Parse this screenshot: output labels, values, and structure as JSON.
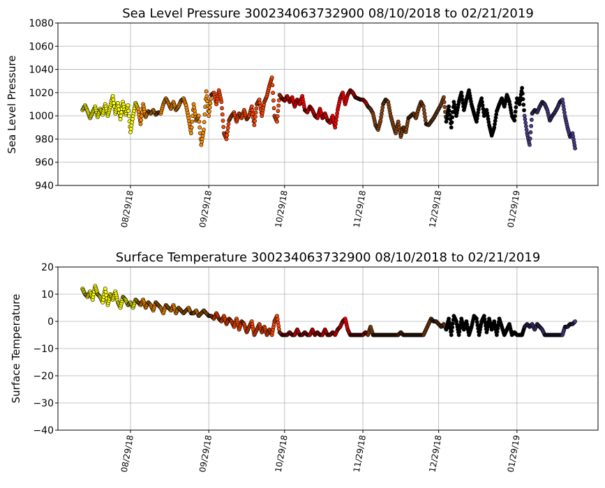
{
  "chart_data": [
    {
      "type": "scatter",
      "title": "Sea Level Pressure 300234063732900  08/10/2018 to 02/21/2019",
      "xlabel": "",
      "ylabel": "Sea Level Pressure",
      "ylim": [
        940,
        1080
      ],
      "yticks": [
        940,
        960,
        980,
        1000,
        1020,
        1040,
        1060,
        1080
      ],
      "grid": true,
      "x_start": "08/10/2018",
      "x_end": "02/21/2019",
      "x_unit": "days since 08/10/2018",
      "xticks": [
        {
          "label": "08/29/18",
          "day": 19
        },
        {
          "label": "09/29/18",
          "day": 50
        },
        {
          "label": "10/29/18",
          "day": 80
        },
        {
          "label": "11/29/18",
          "day": 111
        },
        {
          "label": "12/29/18",
          "day": 141
        },
        {
          "label": "01/29/19",
          "day": 172
        }
      ],
      "segments": [
        {
          "from": 0,
          "to": 21,
          "color": "#ffff00"
        },
        {
          "from": 22,
          "to": 50,
          "color": "#ff8c00"
        },
        {
          "from": 51,
          "to": 78,
          "color": "#ff4500"
        },
        {
          "from": 79,
          "to": 112,
          "color": "#ff0000"
        },
        {
          "from": 113,
          "to": 143,
          "color": "#8b4513"
        },
        {
          "from": 144,
          "to": 174,
          "color": "#000000"
        },
        {
          "from": 175,
          "to": 195,
          "color": "#483d8b"
        }
      ],
      "values": [
        1005,
        1009,
        1004,
        998,
        1003,
        1008,
        999,
        1006,
        1001,
        1010,
        1000,
        1008,
        1017,
        1002,
        1011,
        997,
        1012,
        1001,
        1009,
        986,
        1000,
        1011,
        1006,
        993,
        1010,
        999,
        1004,
        1002,
        1005,
        1001,
        1003,
        1002,
        1010,
        1015,
        1011,
        1006,
        1012,
        1005,
        1008,
        1013,
        1015,
        1009,
        998,
        985,
        1010,
        996,
        1000,
        975,
        988,
        1021,
        1000,
        1018,
        1020,
        1010,
        1022,
        1012,
        985,
        980,
        996,
        1000,
        1003,
        995,
        1002,
        998,
        1005,
        997,
        1000,
        1008,
        992,
        1010,
        1014,
        1000,
        1012,
        1017,
        1026,
        1033,
        1000,
        995,
        1018,
        1015,
        1013,
        1017,
        1012,
        1016,
        1008,
        1014,
        1010,
        1017,
        1005,
        1003,
        1008,
        1005,
        1000,
        998,
        1006,
        998,
        1002,
        996,
        994,
        1000,
        990,
        1005,
        1015,
        1020,
        1010,
        1018,
        1022,
        1020,
        1016,
        1015,
        1014,
        1014,
        1012,
        1008,
        1006,
        1002,
        992,
        988,
        996,
        1010,
        1014,
        1012,
        1000,
        992,
        985,
        995,
        982,
        990,
        986,
        998,
        1000,
        1002,
        998,
        1006,
        1012,
        1008,
        993,
        992,
        995,
        998,
        1002,
        1006,
        1010,
        1016,
        995,
        1008,
        990,
        1012,
        1000,
        1012,
        1020,
        1005,
        1014,
        1022,
        1010,
        1002,
        995,
        1008,
        1015,
        1000,
        1005,
        992,
        983,
        990,
        1004,
        1010,
        1015,
        1008,
        1018,
        1012,
        1000,
        996,
        1015,
        1010,
        1024,
        1000,
        985,
        975,
        1002,
        1005,
        1003,
        1008,
        1012,
        1010,
        1005,
        996,
        1000,
        1003,
        1007,
        1012,
        1014,
        1000,
        990,
        982,
        985,
        972
      ]
    },
    {
      "type": "scatter",
      "title": "Surface Temperature 300234063732900  08/10/2018 to 02/21/2019",
      "xlabel": "",
      "ylabel": "Surface Temperature",
      "ylim": [
        -40,
        20
      ],
      "yticks": [
        -40,
        -30,
        -20,
        -10,
        0,
        10,
        20
      ],
      "grid": true,
      "x_start": "08/10/2018",
      "x_end": "02/21/2019",
      "x_unit": "days since 08/10/2018",
      "xticks": [
        {
          "label": "08/29/18",
          "day": 19
        },
        {
          "label": "09/29/18",
          "day": 50
        },
        {
          "label": "10/29/18",
          "day": 80
        },
        {
          "label": "11/29/18",
          "day": 111
        },
        {
          "label": "12/29/18",
          "day": 141
        },
        {
          "label": "01/29/19",
          "day": 172
        }
      ],
      "segments": [
        {
          "from": 0,
          "to": 21,
          "color": "#ffff00"
        },
        {
          "from": 22,
          "to": 50,
          "color": "#ff8c00"
        },
        {
          "from": 51,
          "to": 78,
          "color": "#ff4500"
        },
        {
          "from": 79,
          "to": 112,
          "color": "#ff0000"
        },
        {
          "from": 113,
          "to": 143,
          "color": "#8b4513"
        },
        {
          "from": 144,
          "to": 174,
          "color": "#000000"
        },
        {
          "from": 175,
          "to": 195,
          "color": "#483d8b"
        }
      ],
      "values": [
        12,
        10,
        9,
        11,
        8,
        13,
        10,
        9,
        7,
        12,
        6,
        10,
        8,
        11,
        7,
        5,
        9,
        8,
        6,
        7,
        5,
        8,
        7,
        6,
        8,
        5,
        7,
        6,
        4,
        7,
        6,
        5,
        3,
        6,
        5,
        4,
        6,
        3,
        5,
        4,
        3,
        4,
        5,
        3,
        3,
        4,
        2,
        3,
        4,
        3,
        2,
        2,
        1,
        3,
        1,
        0,
        2,
        -1,
        1,
        0,
        -2,
        1,
        -3,
        0,
        -1,
        -4,
        -2,
        0,
        -5,
        -3,
        -1,
        -4,
        -2,
        -5,
        -3,
        -5,
        0,
        2,
        -4,
        -5,
        -5,
        -5,
        -4,
        -5,
        -5,
        -3,
        -5,
        -5,
        -4,
        -5,
        -5,
        -3,
        -5,
        -4,
        -5,
        -5,
        -3,
        -5,
        -5,
        -4,
        -5,
        -3,
        -2,
        0,
        1,
        -3,
        -5,
        -5,
        -5,
        -5,
        -5,
        -5,
        -4,
        -5,
        -2,
        -5,
        -5,
        -5,
        -5,
        -5,
        -5,
        -5,
        -5,
        -5,
        -5,
        -5,
        -4,
        -5,
        -5,
        -5,
        -5,
        -5,
        -5,
        -5,
        -5,
        -5,
        -3,
        -1,
        1,
        0,
        0,
        -1,
        -2,
        -1,
        -3,
        1,
        -5,
        2,
        0,
        -5,
        1,
        -3,
        0,
        -5,
        -2,
        2,
        1,
        -5,
        0,
        2,
        -4,
        1,
        -3,
        0,
        -5,
        1,
        -2,
        -5,
        -3,
        -1,
        -5,
        -4,
        -5,
        -5,
        -5,
        -2,
        -1,
        -2,
        -1,
        -3,
        -1,
        -2,
        -3,
        -5,
        -5,
        -5,
        -5,
        -5,
        -5,
        -5,
        -5,
        -2,
        -2,
        -1,
        -1,
        0
      ]
    }
  ]
}
